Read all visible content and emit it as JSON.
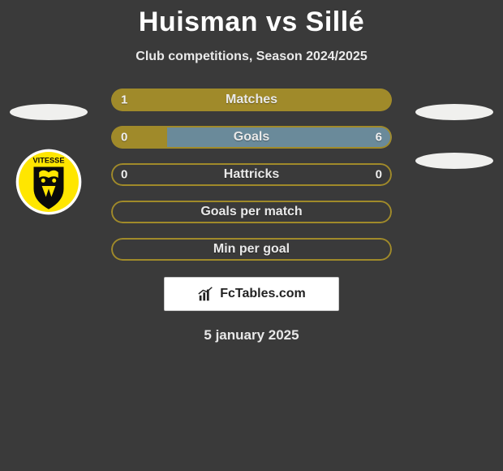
{
  "title": "Huisman vs Sillé",
  "subtitle": "Club competitions, Season 2024/2025",
  "date": "5 january 2025",
  "watermark": "FcTables.com",
  "colors": {
    "background": "#3a3a3a",
    "accent_left": "#a08a2a",
    "accent_right": "#6a8a9a",
    "outline_olive": "#a08a2a",
    "text": "#e8e8e8"
  },
  "players": {
    "left": {
      "name": "Huisman",
      "club": "Vitesse"
    },
    "right": {
      "name": "Sillé",
      "club": ""
    }
  },
  "club_badge": {
    "bg": "#ffe600",
    "ring": "#ffffff",
    "shield": "#0a0a0a",
    "text": "VITESSE",
    "text_color": "#0a0a0a"
  },
  "bars": [
    {
      "label": "Matches",
      "left_value": "1",
      "right_value": "",
      "left_pct": 100,
      "right_pct": 0,
      "left_color": "#a08a2a",
      "right_color": "#6a8a9a",
      "outline": "#a08a2a",
      "show_left_value": true,
      "show_right_value": false
    },
    {
      "label": "Goals",
      "left_value": "0",
      "right_value": "6",
      "left_pct": 20,
      "right_pct": 80,
      "left_color": "#a08a2a",
      "right_color": "#6a8a9a",
      "outline": "#a08a2a",
      "show_left_value": true,
      "show_right_value": true
    },
    {
      "label": "Hattricks",
      "left_value": "0",
      "right_value": "0",
      "left_pct": 0,
      "right_pct": 0,
      "left_color": "#a08a2a",
      "right_color": "#6a8a9a",
      "outline": "#a08a2a",
      "show_left_value": true,
      "show_right_value": true
    },
    {
      "label": "Goals per match",
      "left_value": "",
      "right_value": "",
      "left_pct": 0,
      "right_pct": 0,
      "left_color": "#a08a2a",
      "right_color": "#6a8a9a",
      "outline": "#a08a2a",
      "show_left_value": false,
      "show_right_value": false
    },
    {
      "label": "Min per goal",
      "left_value": "",
      "right_value": "",
      "left_pct": 0,
      "right_pct": 0,
      "left_color": "#a08a2a",
      "right_color": "#6a8a9a",
      "outline": "#a08a2a",
      "show_left_value": false,
      "show_right_value": false
    }
  ]
}
